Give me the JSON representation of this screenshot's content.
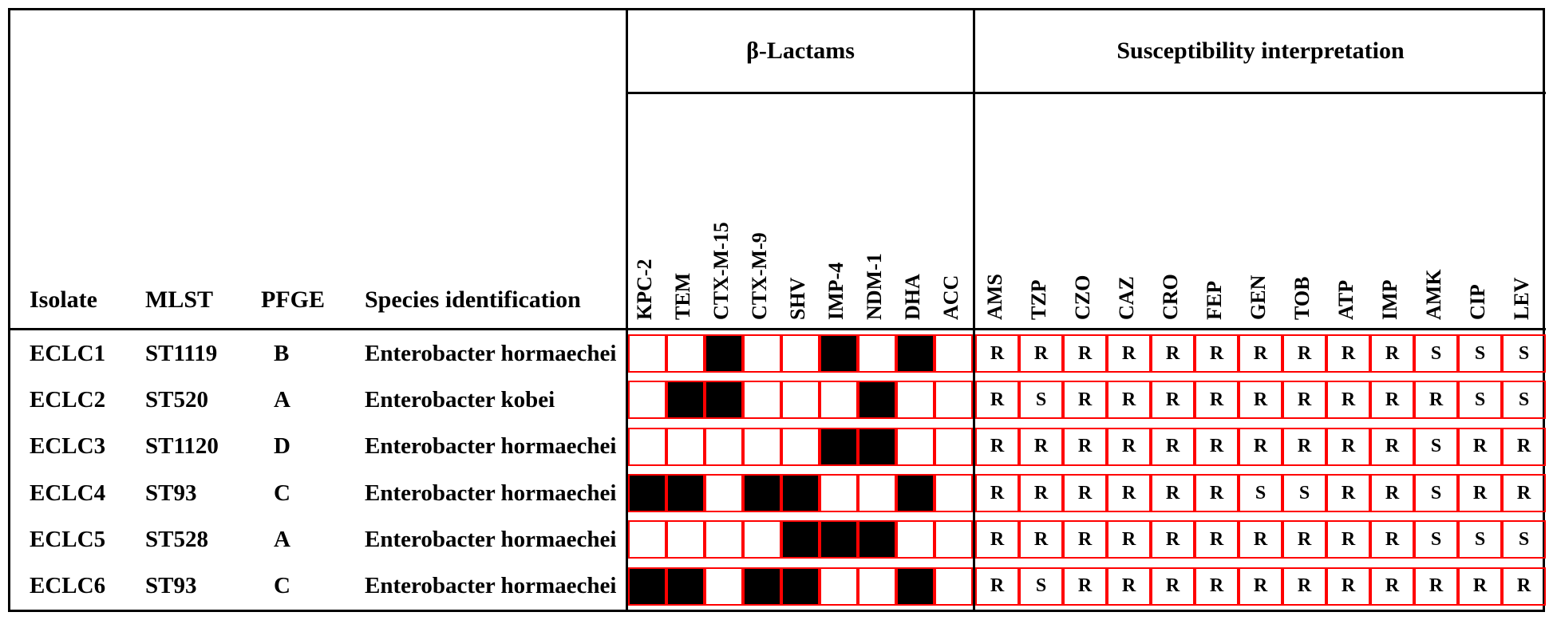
{
  "layout": {
    "background_color": "#ffffff",
    "border_color": "#000000",
    "grid_border_color": "#ff0000",
    "fill_color": "#000000",
    "font_family": "Times New Roman",
    "header_fontsize": 30,
    "body_fontsize": 29,
    "rotated_label_fontsize": 26,
    "cell_fontsize": 24
  },
  "left_headers": {
    "isolate": "Isolate",
    "mlst": "MLST",
    "pfge": "PFGE",
    "species": "Species identification"
  },
  "group_headers": {
    "beta_lactams": "β-Lactams",
    "susceptibility": "Susceptibility interpretation"
  },
  "beta_lactam_cols": [
    "KPC-2",
    "TEM",
    "CTX-M-15",
    "CTX-M-9",
    "SHV",
    "IMP-4",
    "NDM-1",
    "DHA",
    "ACC"
  ],
  "susceptibility_cols": [
    "AMS",
    "TZP",
    "CZO",
    "CAZ",
    "CRO",
    "FEP",
    "GEN",
    "TOB",
    "ATP",
    "IMP",
    "AMK",
    "CIP",
    "LEV"
  ],
  "rows": [
    {
      "isolate": "ECLC1",
      "mlst": "ST1119",
      "pfge": "B",
      "species": "Enterobacter hormaechei",
      "beta_lactams": [
        0,
        0,
        1,
        0,
        0,
        1,
        0,
        1,
        0
      ],
      "susceptibility": [
        "R",
        "R",
        "R",
        "R",
        "R",
        "R",
        "R",
        "R",
        "R",
        "R",
        "S",
        "S",
        "S"
      ]
    },
    {
      "isolate": "ECLC2",
      "mlst": "ST520",
      "pfge": "A",
      "species": "Enterobacter kobei",
      "beta_lactams": [
        0,
        1,
        1,
        0,
        0,
        0,
        1,
        0,
        0
      ],
      "susceptibility": [
        "R",
        "S",
        "R",
        "R",
        "R",
        "R",
        "R",
        "R",
        "R",
        "R",
        "R",
        "S",
        "S"
      ]
    },
    {
      "isolate": "ECLC3",
      "mlst": "ST1120",
      "pfge": "D",
      "species": "Enterobacter hormaechei",
      "beta_lactams": [
        0,
        0,
        0,
        0,
        0,
        1,
        1,
        0,
        0
      ],
      "susceptibility": [
        "R",
        "R",
        "R",
        "R",
        "R",
        "R",
        "R",
        "R",
        "R",
        "R",
        "S",
        "R",
        "R"
      ]
    },
    {
      "isolate": "ECLC4",
      "mlst": "ST93",
      "pfge": "C",
      "species": "Enterobacter hormaechei",
      "beta_lactams": [
        1,
        1,
        0,
        1,
        1,
        0,
        0,
        1,
        0
      ],
      "susceptibility": [
        "R",
        "R",
        "R",
        "R",
        "R",
        "R",
        "S",
        "S",
        "R",
        "R",
        "S",
        "R",
        "R"
      ]
    },
    {
      "isolate": "ECLC5",
      "mlst": "ST528",
      "pfge": "A",
      "species": "Enterobacter hormaechei",
      "beta_lactams": [
        0,
        0,
        0,
        0,
        1,
        1,
        1,
        0,
        0
      ],
      "susceptibility": [
        "R",
        "R",
        "R",
        "R",
        "R",
        "R",
        "R",
        "R",
        "R",
        "R",
        "S",
        "S",
        "S"
      ]
    },
    {
      "isolate": "ECLC6",
      "mlst": "ST93",
      "pfge": "C",
      "species": "Enterobacter hormaechei",
      "beta_lactams": [
        1,
        1,
        0,
        1,
        1,
        0,
        0,
        1,
        0
      ],
      "susceptibility": [
        "R",
        "S",
        "R",
        "R",
        "R",
        "R",
        "R",
        "R",
        "R",
        "R",
        "R",
        "R",
        "R"
      ]
    }
  ]
}
